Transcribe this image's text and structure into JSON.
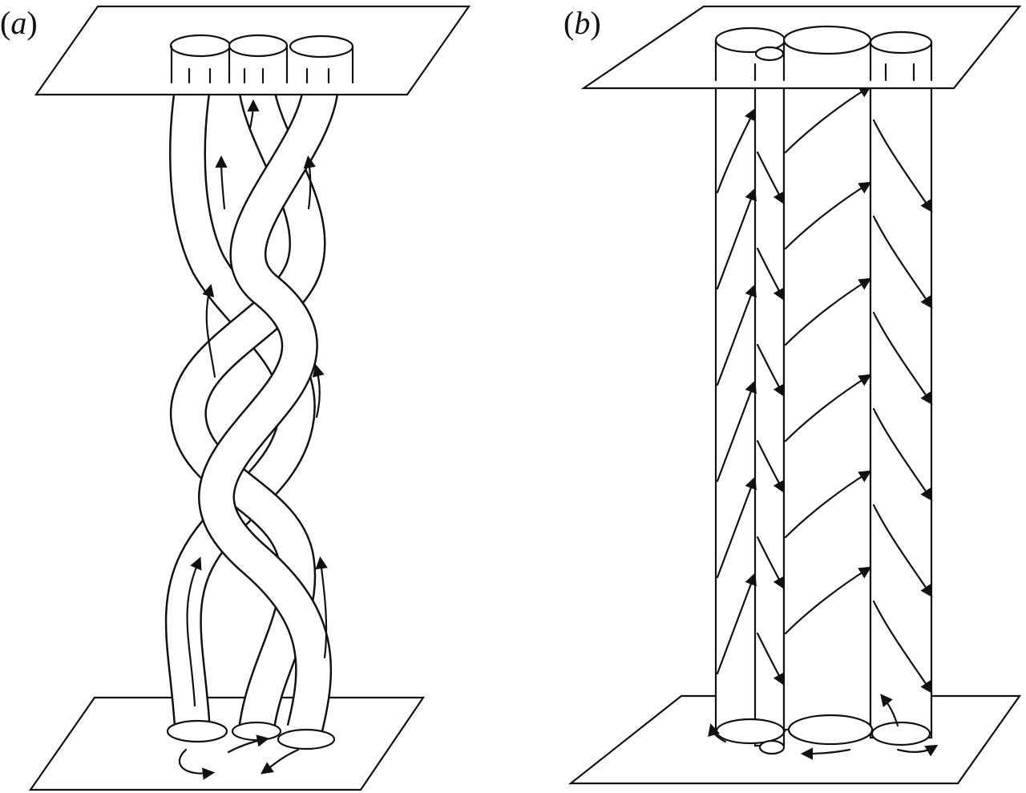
{
  "panels": [
    {
      "id": "a",
      "label_open": "(",
      "label_letter": "a",
      "label_close": ")"
    },
    {
      "id": "b",
      "label_open": "(",
      "label_letter": "b",
      "label_close": ")"
    }
  ],
  "colors": {
    "ink": "#111111",
    "background": "#ffffff"
  }
}
